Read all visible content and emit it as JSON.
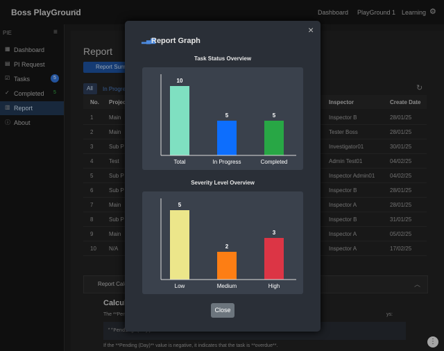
{
  "header": {
    "title": "Boss PlayGround",
    "nav": [
      "Dashboard",
      "PlayGround 1",
      "Learning"
    ]
  },
  "sidebar": {
    "section": "PIE",
    "items": [
      {
        "label": "Dashboard"
      },
      {
        "label": "PI Request"
      },
      {
        "label": "Tasks",
        "badge": "5"
      },
      {
        "label": "Completed",
        "badge": "5"
      },
      {
        "label": "Report"
      },
      {
        "label": "About"
      }
    ]
  },
  "main": {
    "title": "Report",
    "button": "Report Summ",
    "tabs": [
      "All",
      "In Progre"
    ],
    "table": {
      "columns": [
        "No.",
        "Project",
        "Inspector",
        "Create Date"
      ],
      "rows": [
        [
          "1",
          "Main",
          "Inspector B",
          "28/01/25"
        ],
        [
          "2",
          "Main",
          "Tester Boss",
          "28/01/25"
        ],
        [
          "3",
          "Sub P",
          "Investigator01",
          "30/01/25"
        ],
        [
          "4",
          "Test",
          "Admin Test01",
          "04/02/25"
        ],
        [
          "5",
          "Sub P",
          "Inspector Admin01",
          "04/02/25"
        ],
        [
          "6",
          "Sub P",
          "Inspector B",
          "28/01/25"
        ],
        [
          "7",
          "Main",
          "Inspector A",
          "28/01/25"
        ],
        [
          "8",
          "Sub P",
          "Inspector B",
          "31/01/25"
        ],
        [
          "9",
          "Main",
          "Inspector A",
          "05/02/25"
        ],
        [
          "10",
          "N/A",
          "Inspector A",
          "17/02/25"
        ]
      ]
    },
    "panel": {
      "header": "Report Calc",
      "heading": "Calcula",
      "text1": "The **Pending",
      "text1_end": "ys:",
      "code": "**Pending (Day)** = Due Date - Current Date",
      "text2": "If the **Pending (Day)** value is negative, it indicates that the task is **overdue**."
    }
  },
  "modal": {
    "title": "Report Graph",
    "close": "Close"
  },
  "chart_data": [
    {
      "type": "bar",
      "title": "Task Status Overview",
      "categories": [
        "Total",
        "In Progress",
        "Completed"
      ],
      "values": [
        10,
        5,
        5
      ],
      "colors": [
        "#7fe0c1",
        "#0d6efd",
        "#28a745"
      ],
      "ylim": [
        0,
        10
      ]
    },
    {
      "type": "bar",
      "title": "Severity Level Overview",
      "categories": [
        "Low",
        "Medium",
        "High"
      ],
      "values": [
        5,
        2,
        3
      ],
      "colors": [
        "#ece68a",
        "#fd7e14",
        "#dc3545"
      ],
      "ylim": [
        0,
        5
      ]
    }
  ]
}
